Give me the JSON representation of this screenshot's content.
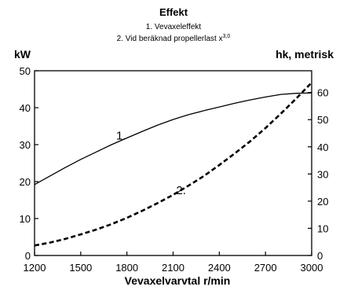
{
  "chart_data": {
    "type": "line",
    "title": "Effekt",
    "subtitle_lines": [
      {
        "text": "1. Vevaxeleffekt",
        "sup": ""
      },
      {
        "text": "2. Vid beräknad propellerlast x",
        "sup": "3,0"
      }
    ],
    "xlabel": "Vevaxelvarvtal r/min",
    "ylabel_left": "kW",
    "ylabel_right": "hk, metrisk",
    "xlim": [
      1200,
      3000
    ],
    "ylim_left": [
      0,
      50
    ],
    "ylim_right": [
      0,
      68
    ],
    "x_ticks": [
      1200,
      1500,
      1800,
      2100,
      2400,
      2700,
      3000
    ],
    "y_left_ticks": [
      0,
      10,
      20,
      30,
      40,
      50
    ],
    "y_right_ticks": [
      0,
      10,
      20,
      30,
      40,
      50,
      60
    ],
    "grid": false,
    "series": [
      {
        "label": "1.",
        "style": "solid",
        "x": [
          1200,
          1300,
          1400,
          1500,
          1600,
          1700,
          1800,
          1900,
          2000,
          2100,
          2200,
          2300,
          2400,
          2500,
          2600,
          2700,
          2800,
          2900,
          3000
        ],
        "y": [
          19.2,
          21.5,
          23.8,
          26.0,
          28.0,
          30.0,
          31.8,
          33.6,
          35.3,
          36.8,
          38.1,
          39.2,
          40.2,
          41.2,
          42.1,
          42.9,
          43.6,
          43.9,
          44.0
        ]
      },
      {
        "label": "2.",
        "style": "dashed",
        "x": [
          1200,
          1300,
          1400,
          1500,
          1600,
          1700,
          1800,
          1900,
          2000,
          2100,
          2200,
          2300,
          2400,
          2500,
          2600,
          2700,
          2800,
          2900,
          3000
        ],
        "y": [
          2.7,
          3.5,
          4.5,
          5.7,
          7.0,
          8.5,
          10.2,
          12.1,
          14.2,
          16.4,
          18.9,
          21.5,
          24.5,
          27.6,
          30.9,
          34.5,
          38.4,
          42.5,
          46.8
        ]
      }
    ]
  }
}
